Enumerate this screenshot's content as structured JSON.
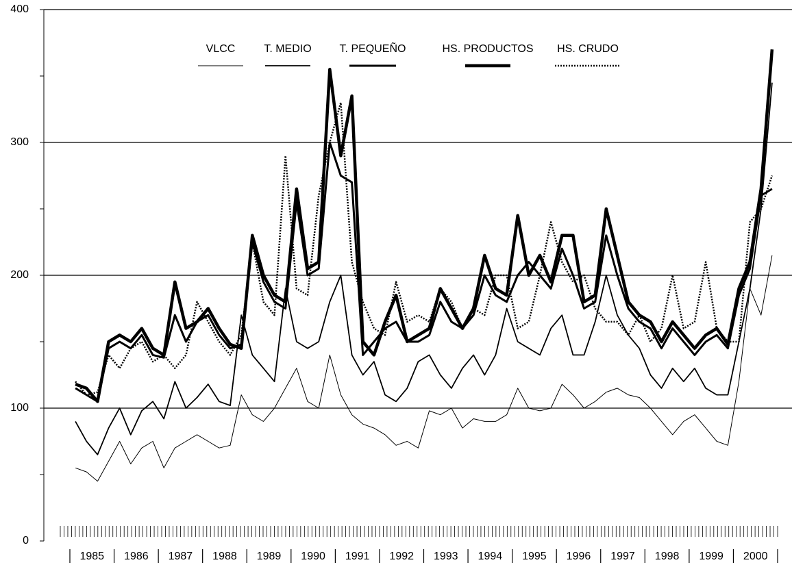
{
  "chart_data": {
    "type": "line",
    "categories": [
      "1985",
      null,
      null,
      null,
      "1986",
      null,
      null,
      null,
      "1987",
      null,
      null,
      null,
      "1988",
      null,
      null,
      null,
      "1989",
      null,
      null,
      null,
      "1990",
      null,
      null,
      null,
      "1991",
      null,
      null,
      null,
      "1992",
      null,
      null,
      null,
      "1993",
      null,
      null,
      null,
      "1994",
      null,
      null,
      null,
      "1995",
      null,
      null,
      null,
      "1996",
      null,
      null,
      null,
      "1997",
      null,
      null,
      null,
      "1998",
      null,
      null,
      null,
      "1999",
      null,
      null,
      null,
      "2000",
      null,
      null,
      null
    ],
    "ylim": [
      0,
      400
    ],
    "yticks": [
      0,
      100,
      200,
      300,
      400
    ],
    "grid": true,
    "series": [
      {
        "name": "VLCC",
        "color": "#000000",
        "line_width": 1,
        "dashed": false,
        "values": [
          55,
          52,
          45,
          60,
          75,
          58,
          70,
          75,
          55,
          70,
          75,
          80,
          75,
          70,
          72,
          110,
          95,
          90,
          100,
          115,
          130,
          105,
          100,
          140,
          110,
          95,
          88,
          85,
          80,
          72,
          75,
          70,
          98,
          95,
          100,
          85,
          92,
          90,
          90,
          95,
          115,
          100,
          98,
          100,
          118,
          110,
          100,
          105,
          112,
          115,
          110,
          108,
          100,
          90,
          80,
          90,
          95,
          85,
          75,
          72,
          120,
          190,
          170,
          215
        ]
      },
      {
        "name": "T. MEDIO",
        "color": "#000000",
        "line_width": 1.8,
        "dashed": false,
        "values": [
          90,
          75,
          65,
          85,
          100,
          80,
          98,
          105,
          92,
          120,
          100,
          108,
          118,
          105,
          102,
          170,
          140,
          130,
          120,
          190,
          150,
          145,
          150,
          180,
          200,
          140,
          125,
          135,
          110,
          105,
          115,
          135,
          140,
          125,
          115,
          130,
          140,
          125,
          140,
          175,
          150,
          145,
          140,
          160,
          170,
          140,
          140,
          165,
          200,
          170,
          155,
          145,
          125,
          115,
          130,
          120,
          130,
          115,
          110,
          110,
          150,
          190,
          250,
          345
        ]
      },
      {
        "name": "T. PEQUEÑO",
        "color": "#000000",
        "line_width": 3,
        "dashed": false,
        "values": [
          115,
          110,
          105,
          145,
          150,
          145,
          155,
          140,
          138,
          170,
          150,
          165,
          170,
          155,
          145,
          148,
          225,
          195,
          180,
          175,
          255,
          200,
          205,
          300,
          275,
          270,
          140,
          150,
          160,
          165,
          150,
          150,
          155,
          180,
          165,
          160,
          170,
          200,
          185,
          180,
          200,
          210,
          200,
          190,
          220,
          200,
          175,
          180,
          230,
          200,
          175,
          165,
          160,
          145,
          160,
          150,
          140,
          150,
          155,
          145,
          185,
          205,
          260,
          265
        ]
      },
      {
        "name": "HS. PRODUCTOS",
        "color": "#000000",
        "line_width": 4.5,
        "dashed": false,
        "values": [
          118,
          115,
          105,
          150,
          155,
          150,
          160,
          145,
          140,
          195,
          160,
          165,
          175,
          160,
          148,
          145,
          230,
          200,
          185,
          180,
          265,
          205,
          210,
          355,
          290,
          335,
          150,
          140,
          165,
          185,
          150,
          155,
          160,
          190,
          175,
          160,
          175,
          215,
          190,
          185,
          245,
          200,
          215,
          195,
          230,
          230,
          180,
          185,
          250,
          215,
          180,
          170,
          165,
          150,
          165,
          155,
          145,
          155,
          160,
          148,
          190,
          210,
          265,
          370
        ]
      },
      {
        "name": "HS. CRUDO",
        "color": "#000000",
        "line_width": 2.5,
        "dashed": true,
        "values": [
          120,
          110,
          112,
          140,
          130,
          145,
          150,
          135,
          140,
          130,
          140,
          180,
          165,
          150,
          140,
          155,
          225,
          180,
          170,
          290,
          190,
          185,
          260,
          300,
          330,
          210,
          180,
          160,
          155,
          195,
          165,
          170,
          165,
          190,
          180,
          160,
          175,
          170,
          200,
          200,
          160,
          165,
          200,
          240,
          210,
          195,
          200,
          175,
          165,
          165,
          155,
          170,
          150,
          160,
          200,
          160,
          165,
          210,
          160,
          150,
          150,
          240,
          250,
          275
        ]
      }
    ]
  }
}
